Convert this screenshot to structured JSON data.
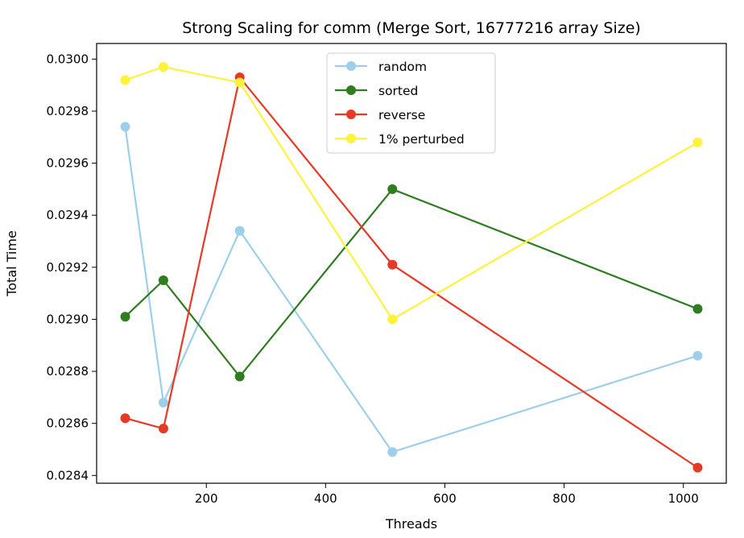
{
  "chart_data": {
    "type": "line",
    "title": "Strong Scaling for comm (Merge Sort, 16777216 array Size)",
    "xlabel": "Threads",
    "ylabel": "Total Time",
    "x": [
      64,
      128,
      256,
      512,
      1024
    ],
    "xlim": [
      16,
      1072
    ],
    "ylim": [
      0.02837,
      0.03006
    ],
    "xticks": [
      200,
      400,
      600,
      800,
      1000
    ],
    "yticks": [
      0.0284,
      0.0286,
      0.0288,
      0.029,
      0.0292,
      0.0294,
      0.0296,
      0.0298,
      0.03
    ],
    "ytick_labels": [
      "0.0284",
      "0.0286",
      "0.0288",
      "0.0290",
      "0.0292",
      "0.0294",
      "0.0296",
      "0.0298",
      "0.0300"
    ],
    "grid": false,
    "legend_position": "top-center",
    "series": [
      {
        "name": "random",
        "color": "#9ecfea",
        "values": [
          0.02974,
          0.02868,
          0.02934,
          0.02849,
          0.02886
        ]
      },
      {
        "name": "sorted",
        "color": "#2e7d1f",
        "values": [
          0.02901,
          0.02915,
          0.02878,
          0.0295,
          0.02904
        ]
      },
      {
        "name": "reverse",
        "color": "#e63a27",
        "values": [
          0.02862,
          0.02858,
          0.02993,
          0.02921,
          0.02843
        ]
      },
      {
        "name": "1% perturbed",
        "color": "#fff23a",
        "values": [
          0.02992,
          0.02997,
          0.02991,
          0.029,
          0.02968
        ]
      }
    ]
  }
}
